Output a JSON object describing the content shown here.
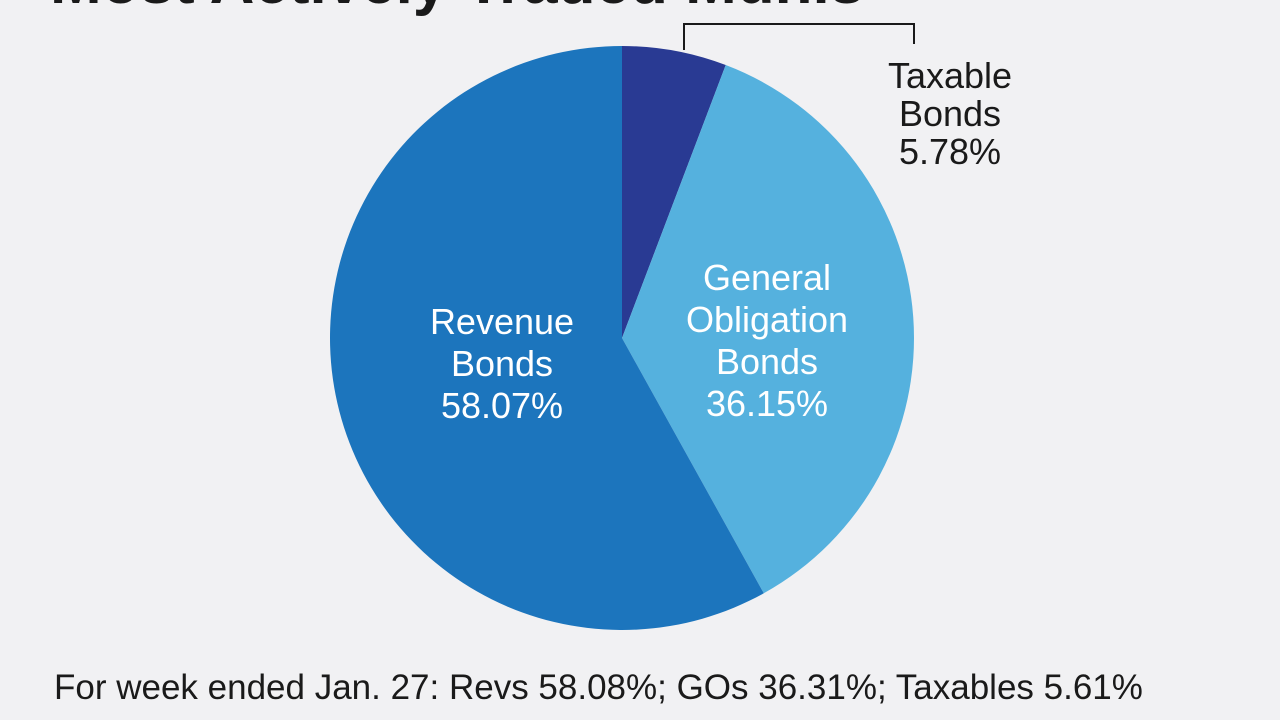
{
  "chart_data": {
    "type": "pie",
    "title": "Most Actively Traded Munis",
    "series": [
      {
        "name": "",
        "values": [
          {
            "label_lines": [
              "Taxable",
              "Bonds"
            ],
            "percent_label": "5.78%",
            "value": 5.78,
            "color": "#293a93"
          },
          {
            "label_lines": [
              "General",
              "Obligation",
              "Bonds"
            ],
            "percent_label": "36.15%",
            "value": 36.15,
            "color": "#55b1de"
          },
          {
            "label_lines": [
              "Revenue",
              "Bonds"
            ],
            "percent_label": "58.07%",
            "value": 58.07,
            "color": "#1c75bd"
          }
        ]
      }
    ],
    "start_angle": "12 o'clock, clockwise",
    "note": "For week ended Jan. 27: Revs 58.08%; GOs 36.31%; Taxables 5.61%"
  },
  "colors": {
    "background": "#f1f1f3",
    "label_text_on_dark": "#ffffff",
    "label_text_outside": "#1a1a1a",
    "leader_line": "#1a1a1a"
  }
}
